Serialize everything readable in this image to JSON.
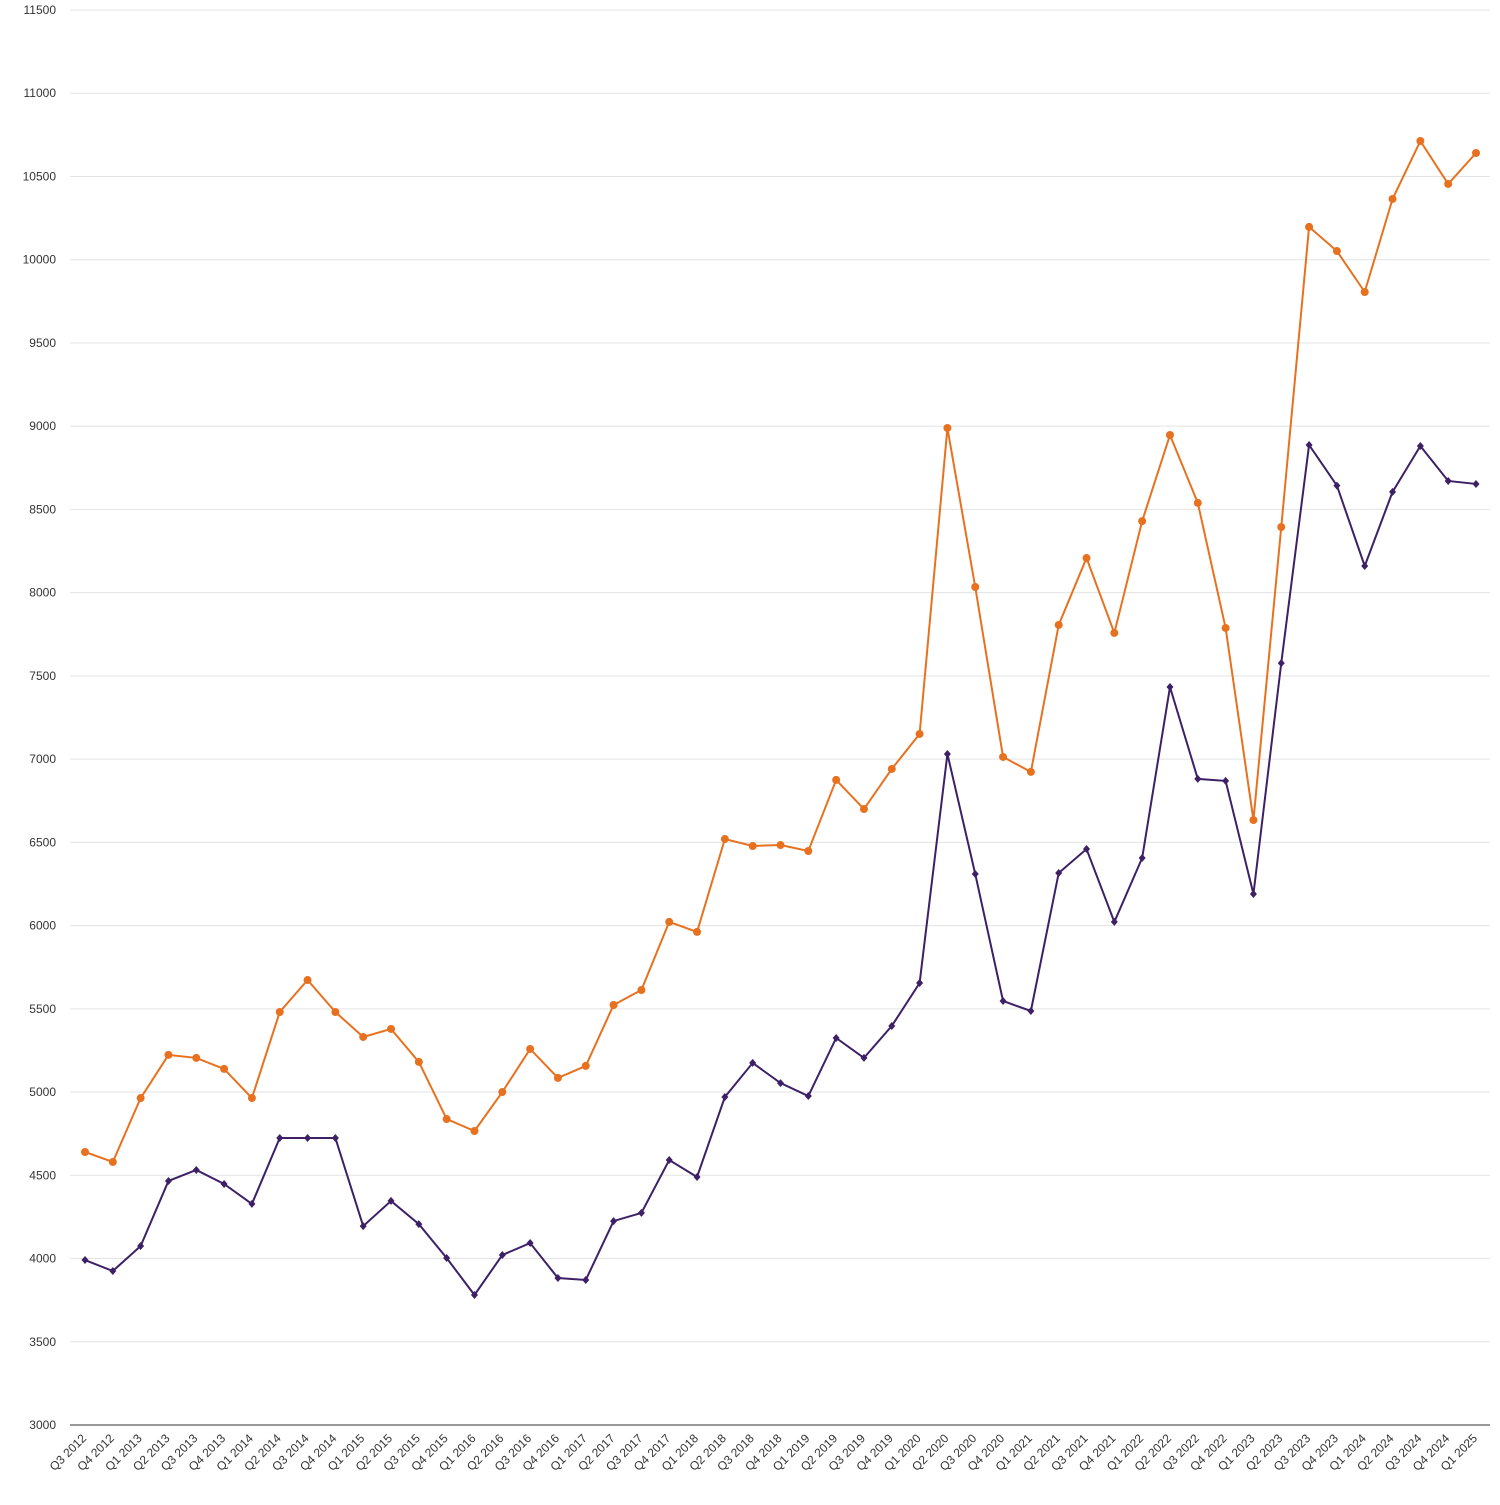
{
  "chart_data": {
    "type": "line",
    "categories": [
      "Q3 2012",
      "Q4 2012",
      "Q1 2013",
      "Q2 2013",
      "Q3 2013",
      "Q4 2013",
      "Q1 2014",
      "Q2 2014",
      "Q3 2014",
      "Q4 2014",
      "Q1 2015",
      "Q2 2015",
      "Q3 2015",
      "Q4 2015",
      "Q1 2016",
      "Q2 2016",
      "Q3 2016",
      "Q4 2016",
      "Q1 2017",
      "Q2 2017",
      "Q3 2017",
      "Q4 2017",
      "Q1 2018",
      "Q2 2018",
      "Q3 2018",
      "Q4 2018",
      "Q1 2019",
      "Q2 2019",
      "Q3 2019",
      "Q4 2019",
      "Q1 2020",
      "Q2 2020",
      "Q3 2020",
      "Q4 2020",
      "Q1 2021",
      "Q2 2021",
      "Q3 2021",
      "Q4 2021",
      "Q1 2022",
      "Q2 2022",
      "Q3 2022",
      "Q4 2022",
      "Q1 2023",
      "Q2 2023",
      "Q3 2023",
      "Q4 2023",
      "Q1 2024",
      "Q2 2024",
      "Q3 2024",
      "Q4 2024",
      "Q1 2025"
    ],
    "series": [
      {
        "color": "#e8711f",
        "marker": "circle",
        "values": [
          4640,
          4580,
          4964,
          5223,
          5205,
          5139,
          4964,
          5481,
          5673,
          5481,
          5331,
          5379,
          5181,
          4838,
          4766,
          5000,
          5259,
          5085,
          5157,
          5523,
          5613,
          6022,
          5962,
          6520,
          6478,
          6484,
          6448,
          6875,
          6700,
          6941,
          7151,
          8989,
          8034,
          7013,
          6923,
          7806,
          8208,
          7758,
          8430,
          8947,
          8539,
          7788,
          6634,
          8394,
          10197,
          10052,
          9806,
          10365,
          10713,
          10455,
          10641
        ]
      },
      {
        "color": "#3d2066",
        "marker": "diamond",
        "values": [
          3991,
          3925,
          4075,
          4466,
          4532,
          4448,
          4328,
          4724,
          4724,
          4724,
          4195,
          4346,
          4207,
          4003,
          3781,
          4021,
          4093,
          3883,
          3871,
          4225,
          4274,
          4592,
          4490,
          4970,
          5175,
          5054,
          4976,
          5325,
          5205,
          5397,
          5655,
          7031,
          6310,
          5547,
          5487,
          6316,
          6460,
          6022,
          6406,
          7433,
          6881,
          6869,
          6190,
          7577,
          8887,
          8643,
          8160,
          8605,
          8881,
          8671,
          8653
        ]
      }
    ],
    "ylim": [
      3000,
      11500
    ],
    "yticks": [
      3000,
      3500,
      4000,
      4500,
      5000,
      5500,
      6000,
      6500,
      7000,
      7500,
      8000,
      8500,
      9000,
      9500,
      10000,
      10500,
      11000,
      11500
    ],
    "grid": true
  }
}
